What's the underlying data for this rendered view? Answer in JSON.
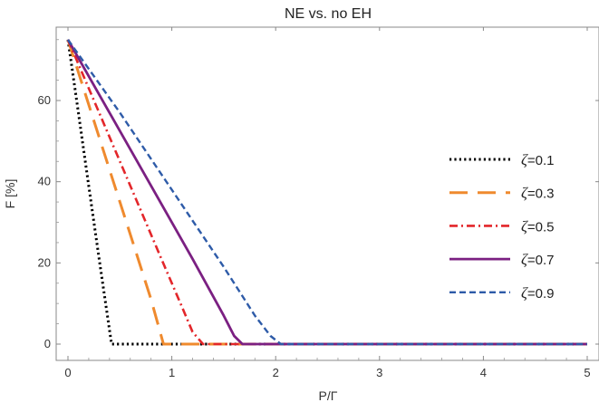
{
  "chart_data": {
    "type": "line",
    "title": "NE vs. no EH",
    "xlabel": "P/Γ",
    "ylabel": "F [%]",
    "xlim": [
      0,
      5
    ],
    "ylim": [
      -4,
      78
    ],
    "xticks": [
      0,
      1,
      2,
      3,
      4,
      5
    ],
    "yticks": [
      0,
      20,
      40,
      60
    ],
    "xtick_labels": [
      "0",
      "1",
      "2",
      "3",
      "4",
      "5"
    ],
    "ytick_labels": [
      "0",
      "20",
      "40",
      "60"
    ],
    "grid": false,
    "legend_position": "right",
    "series": [
      {
        "name": "ζ=0.1",
        "legend_symbol": "ζ",
        "legend_value": "=0.1",
        "color": "#000000",
        "dash": "dotted",
        "x": [
          0,
          0.1,
          0.2,
          0.3,
          0.42,
          1,
          2,
          5
        ],
        "y": [
          75,
          57,
          39,
          21,
          0,
          0,
          0,
          0
        ]
      },
      {
        "name": "ζ=0.3",
        "legend_symbol": "ζ",
        "legend_value": "=0.3",
        "color": "#ef8a2e",
        "dash": "longdash",
        "x": [
          0,
          0.2,
          0.4,
          0.6,
          0.8,
          0.92,
          1.5,
          5
        ],
        "y": [
          75,
          59,
          43,
          27,
          11,
          0,
          0,
          0
        ]
      },
      {
        "name": "ζ=0.5",
        "legend_symbol": "ζ",
        "legend_value": "=0.5",
        "color": "#e3262a",
        "dash": "dashdot",
        "x": [
          0,
          0.3,
          0.6,
          0.9,
          1.1,
          1.2,
          1.3,
          2,
          5
        ],
        "y": [
          75,
          57,
          39,
          21,
          9,
          3,
          0,
          0,
          0
        ]
      },
      {
        "name": "ζ=0.7",
        "legend_symbol": "ζ",
        "legend_value": "=0.7",
        "color": "#7b2082",
        "dash": "solid",
        "x": [
          0,
          0.4,
          0.8,
          1.2,
          1.5,
          1.6,
          1.68,
          2.5,
          5
        ],
        "y": [
          75,
          57,
          39,
          21,
          7,
          2,
          0,
          0,
          0
        ]
      },
      {
        "name": "ζ=0.9",
        "legend_symbol": "ζ",
        "legend_value": "=0.9",
        "color": "#2e5ba8",
        "dash": "dashed",
        "x": [
          0,
          0.5,
          1.0,
          1.5,
          1.8,
          1.95,
          2.05,
          3,
          5
        ],
        "y": [
          75,
          57,
          38,
          19,
          7,
          2,
          0,
          0,
          0
        ]
      }
    ]
  }
}
